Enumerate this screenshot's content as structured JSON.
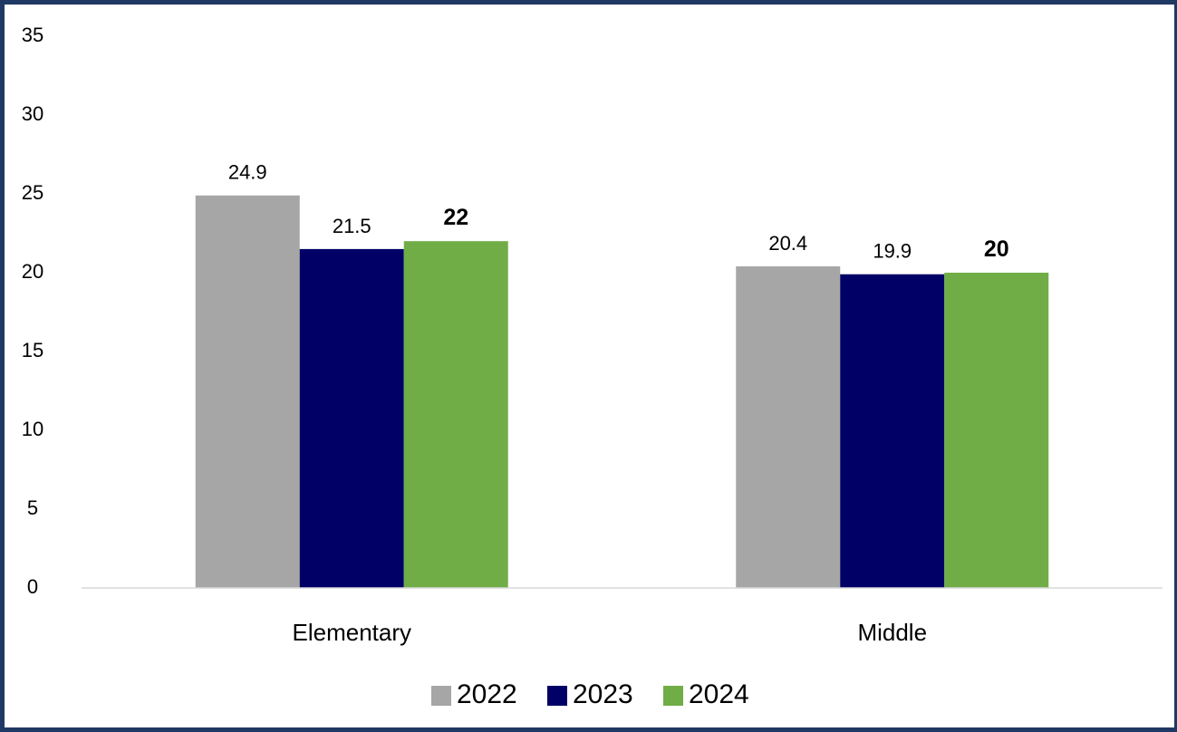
{
  "chart_data": {
    "type": "bar",
    "categories": [
      "Elementary",
      "Middle"
    ],
    "series": [
      {
        "name": "2022",
        "values": [
          24.9,
          20.4
        ],
        "color": "#a6a6a6",
        "labels": [
          "24.9",
          "20.4"
        ],
        "label_bold": false
      },
      {
        "name": "2023",
        "values": [
          21.5,
          19.9
        ],
        "color": "#000066",
        "labels": [
          "21.5",
          "19.9"
        ],
        "label_bold": false
      },
      {
        "name": "2024",
        "values": [
          22,
          20
        ],
        "color": "#70ad47",
        "labels": [
          "22",
          "20"
        ],
        "label_bold": true
      }
    ],
    "ylim": [
      0,
      35
    ],
    "yticks": [
      0,
      5,
      10,
      15,
      20,
      25,
      30,
      35
    ],
    "grid": false,
    "legend_position": "bottom",
    "axis_color": "#d9d9d9",
    "frame_color": "#1f3864"
  }
}
